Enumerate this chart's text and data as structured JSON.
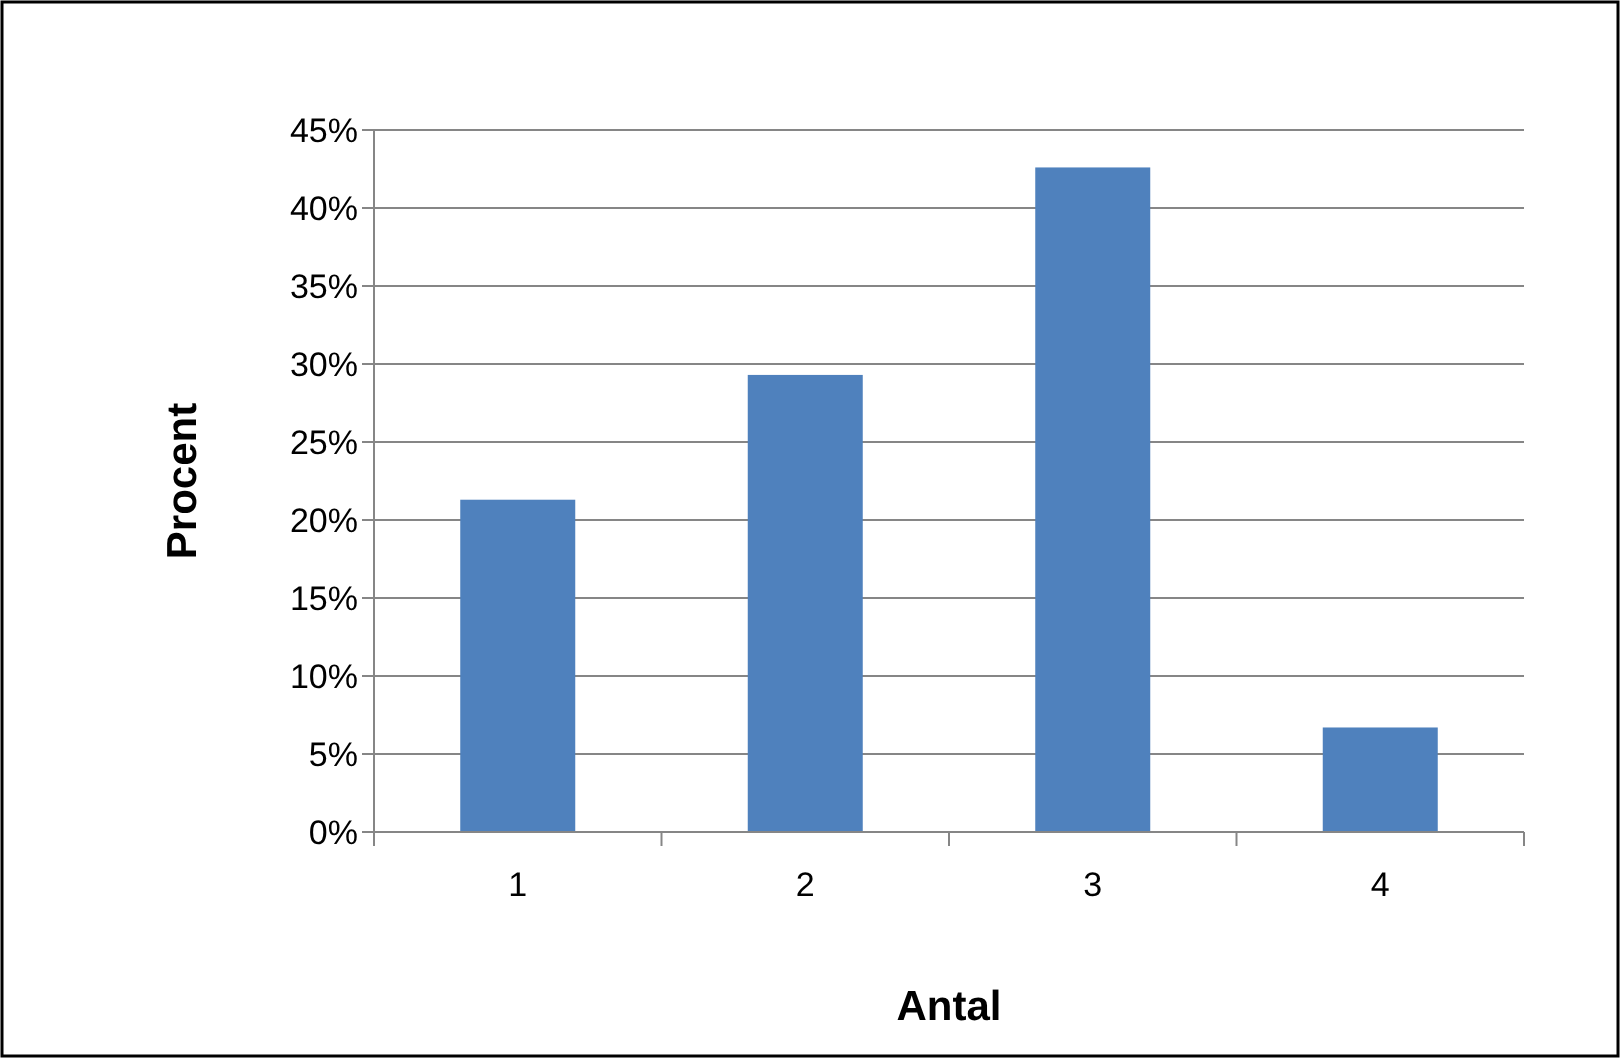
{
  "chart_data": {
    "type": "bar",
    "xlabel": "Antal",
    "ylabel": "Procent",
    "categories": [
      "1",
      "2",
      "3",
      "4"
    ],
    "values": [
      21.3,
      29.3,
      42.6,
      6.7
    ],
    "color": "#4f81bd",
    "ylim": [
      0,
      45
    ],
    "yticks": [
      {
        "value": 0,
        "label": "0%"
      },
      {
        "value": 5,
        "label": "5%"
      },
      {
        "value": 10,
        "label": "10%"
      },
      {
        "value": 15,
        "label": "15%"
      },
      {
        "value": 20,
        "label": "20%"
      },
      {
        "value": 25,
        "label": "25%"
      },
      {
        "value": 30,
        "label": "30%"
      },
      {
        "value": 35,
        "label": "35%"
      },
      {
        "value": 40,
        "label": "40%"
      },
      {
        "value": 45,
        "label": "45%"
      }
    ],
    "grid": "y"
  }
}
